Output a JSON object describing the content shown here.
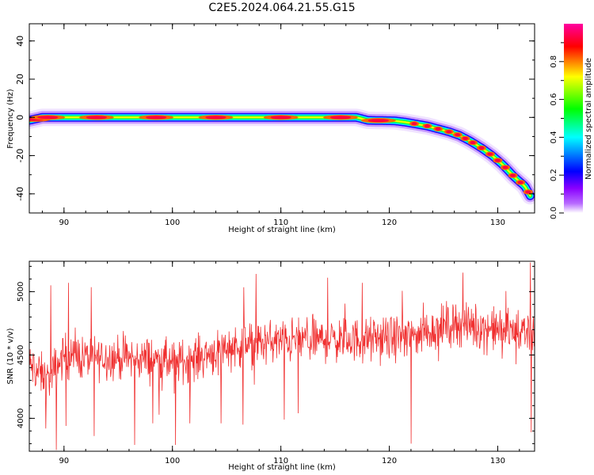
{
  "title": "C2E5.2024.064.21.55.G15",
  "chart_data": [
    {
      "type": "heatmap",
      "xlabel": "Height of straight line (km)",
      "ylabel": "Frequency (Hz)",
      "xlim": [
        86.8,
        133.4
      ],
      "ylim": [
        -50,
        49
      ],
      "x_ticks": [
        "90",
        "100",
        "110",
        "120",
        "130"
      ],
      "y_ticks": [
        "-40",
        "-20",
        "0",
        "20",
        "40"
      ],
      "colorbar": {
        "label": "Normalized spectral amplitude",
        "range": [
          0,
          1
        ],
        "ticks": [
          "0.0",
          "0.2",
          "0.4",
          "0.6",
          "0.8"
        ],
        "colors": [
          "#ffffff",
          "#8a00ff",
          "#0000ff",
          "#00ffff",
          "#00ff00",
          "#ffff00",
          "#ff0000",
          "#ff00a0"
        ]
      },
      "ridge": {
        "x": [
          86.8,
          88,
          90,
          95,
          100,
          105,
          110,
          115,
          117,
          118,
          119.5,
          120.5,
          121.5,
          122.5,
          123.5,
          124.5,
          125.5,
          126.5,
          127.5,
          128.5,
          129.5,
          130.5,
          131.5,
          132.5,
          133.0
        ],
        "y": [
          -1.5,
          0,
          0,
          0,
          0,
          0,
          0,
          0,
          0,
          -1.5,
          -1.7,
          -1.8,
          -2.5,
          -3.5,
          -4.5,
          -6.0,
          -7.5,
          -9.5,
          -12.5,
          -16,
          -20,
          -25,
          -31,
          -36,
          -41
        ]
      },
      "peaks_x": [
        87.2,
        88.5,
        93,
        98.5,
        104,
        110,
        115.5,
        119,
        122.3,
        123.5,
        124.5,
        125.5,
        126.3,
        127,
        127.7,
        128.5,
        129.3,
        130,
        130.7,
        131.4,
        132.1,
        132.8
      ]
    },
    {
      "type": "line",
      "xlabel": "Height of straight line (km)",
      "ylabel": "SNR (10 * v/v)",
      "xlim": [
        86.8,
        133.4
      ],
      "ylim": [
        3740,
        5240
      ],
      "x_ticks": [
        "90",
        "100",
        "110",
        "120",
        "130"
      ],
      "y_ticks": [
        "4000",
        "4500",
        "5000"
      ],
      "color": "#f03030",
      "series": [
        {
          "x_range": [
            86.8,
            133.4
          ],
          "n_points": 1200,
          "mean_profile": {
            "x": [
              86.8,
              88.5,
              90,
              92,
              95,
              98,
              100,
              102,
              105,
              108,
              110,
              113,
              115,
              118,
              120,
              122,
              124,
              126,
              128,
              130,
              132,
              133.4
            ],
            "y": [
              4420,
              4300,
              4500,
              4480,
              4480,
              4470,
              4440,
              4470,
              4560,
              4590,
              4610,
              4620,
              4620,
              4620,
              4630,
              4650,
              4700,
              4750,
              4720,
              4700,
              4680,
              4690
            ]
          },
          "noise_amplitude": 130,
          "spikes": [
            {
              "x": 88.3,
              "y": 3920
            },
            {
              "x": 88.8,
              "y": 5050
            },
            {
              "x": 89.3,
              "y": 3750
            },
            {
              "x": 90.2,
              "y": 3940
            },
            {
              "x": 90.4,
              "y": 5070
            },
            {
              "x": 92.8,
              "y": 3860
            },
            {
              "x": 96.5,
              "y": 3790
            },
            {
              "x": 98.2,
              "y": 3960
            },
            {
              "x": 100.3,
              "y": 3790
            },
            {
              "x": 101.6,
              "y": 3960
            },
            {
              "x": 104.5,
              "y": 3960
            },
            {
              "x": 106.5,
              "y": 3950
            },
            {
              "x": 107.7,
              "y": 5140
            },
            {
              "x": 110.3,
              "y": 3990
            },
            {
              "x": 111.6,
              "y": 4040
            },
            {
              "x": 114.3,
              "y": 5110
            },
            {
              "x": 117.5,
              "y": 5070
            },
            {
              "x": 122.0,
              "y": 3800
            },
            {
              "x": 126.8,
              "y": 5150
            },
            {
              "x": 133.0,
              "y": 5230
            },
            {
              "x": 133.1,
              "y": 3890
            }
          ]
        }
      ]
    }
  ]
}
